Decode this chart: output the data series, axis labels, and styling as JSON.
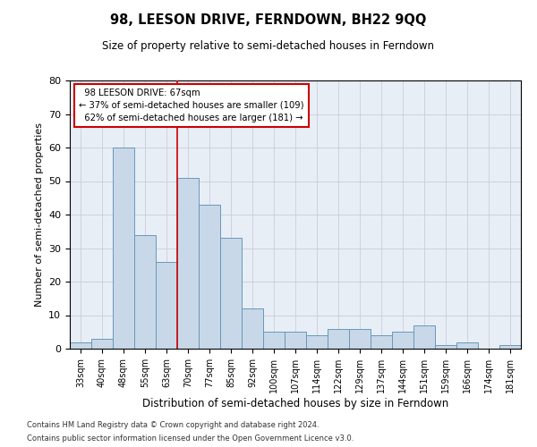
{
  "title": "98, LEESON DRIVE, FERNDOWN, BH22 9QQ",
  "subtitle": "Size of property relative to semi-detached houses in Ferndown",
  "xlabel": "Distribution of semi-detached houses by size in Ferndown",
  "ylabel": "Number of semi-detached properties",
  "categories": [
    "33sqm",
    "40sqm",
    "48sqm",
    "55sqm",
    "63sqm",
    "70sqm",
    "77sqm",
    "85sqm",
    "92sqm",
    "100sqm",
    "107sqm",
    "114sqm",
    "122sqm",
    "129sqm",
    "137sqm",
    "144sqm",
    "151sqm",
    "159sqm",
    "166sqm",
    "174sqm",
    "181sqm"
  ],
  "values": [
    2,
    3,
    60,
    34,
    26,
    51,
    43,
    33,
    12,
    5,
    5,
    4,
    6,
    6,
    4,
    5,
    7,
    1,
    2,
    0,
    1
  ],
  "bar_color": "#c8d8e8",
  "bar_edge_color": "#6699bb",
  "highlight_label": "98 LEESON DRIVE: 67sqm",
  "pct_smaller": "37% of semi-detached houses are smaller (109)",
  "pct_larger": "62% of semi-detached houses are larger (181)",
  "annotation_box_color": "#ffffff",
  "annotation_box_edge": "#cc0000",
  "vline_color": "#cc0000",
  "grid_color": "#ccccdd",
  "bg_color": "#e8eef5",
  "ylim": [
    0,
    80
  ],
  "yticks": [
    0,
    10,
    20,
    30,
    40,
    50,
    60,
    70,
    80
  ],
  "footer1": "Contains HM Land Registry data © Crown copyright and database right 2024.",
  "footer2": "Contains public sector information licensed under the Open Government Licence v3.0."
}
